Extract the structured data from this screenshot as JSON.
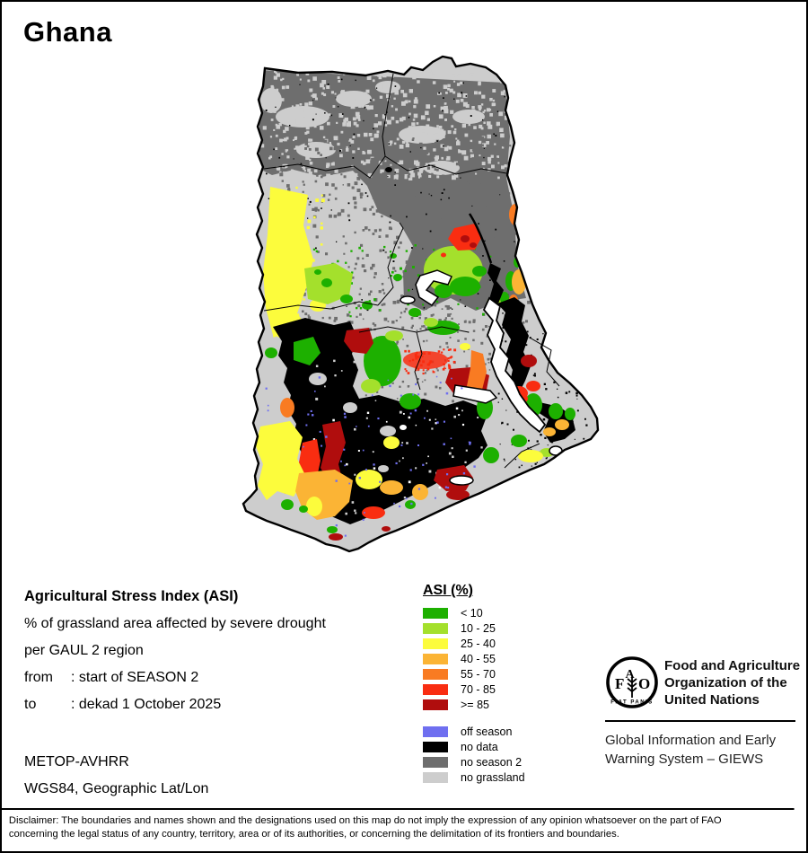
{
  "title": "Ghana",
  "legend": {
    "title": "ASI (%)",
    "classes": [
      {
        "label": "< 10",
        "color": "#1db000"
      },
      {
        "label": "10 - 25",
        "color": "#a4e02c"
      },
      {
        "label": "25 - 40",
        "color": "#fcfc3c"
      },
      {
        "label": "40 - 55",
        "color": "#fbb435"
      },
      {
        "label": "55 - 70",
        "color": "#f97b22"
      },
      {
        "label": "70 - 85",
        "color": "#f92d11"
      },
      {
        "label": ">= 85",
        "color": "#b00d0d"
      }
    ],
    "extras": [
      {
        "label": "off season",
        "color": "#6f6ff0"
      },
      {
        "label": "no data",
        "color": "#000000"
      },
      {
        "label": "no season 2",
        "color": "#6e6e6e"
      },
      {
        "label": "no grassland",
        "color": "#cdcdcd"
      }
    ]
  },
  "info": {
    "heading": "Agricultural Stress Index (ASI)",
    "line1": "% of grassland area affected by severe drought",
    "line2": "per GAUL 2 region",
    "from_label": "from",
    "from_value": ": start of SEASON 2",
    "to_label": "to",
    "to_value": ": dekad 1 October 2025",
    "sensor": "METOP-AVHRR",
    "projection": "WGS84, Geographic Lat/Lon"
  },
  "fao": {
    "logo_letters": "FAO",
    "logo_motto": "FIAT PANIS",
    "org_line1": "Food and Agriculture",
    "org_line2": "Organization of the",
    "org_line3": "United Nations",
    "giews_line1": "Global Information and Early",
    "giews_line2": "Warning System – GIEWS"
  },
  "disclaimer": {
    "line1": "Disclaimer: The boundaries and names shown and the designations used on this map do not imply the expression of any opinion whatsoever on the part of FAO",
    "line2": "concerning the legal status of any country, territory, area or of its authorities, or concerning the delimitation of its frontiers and boundaries."
  }
}
